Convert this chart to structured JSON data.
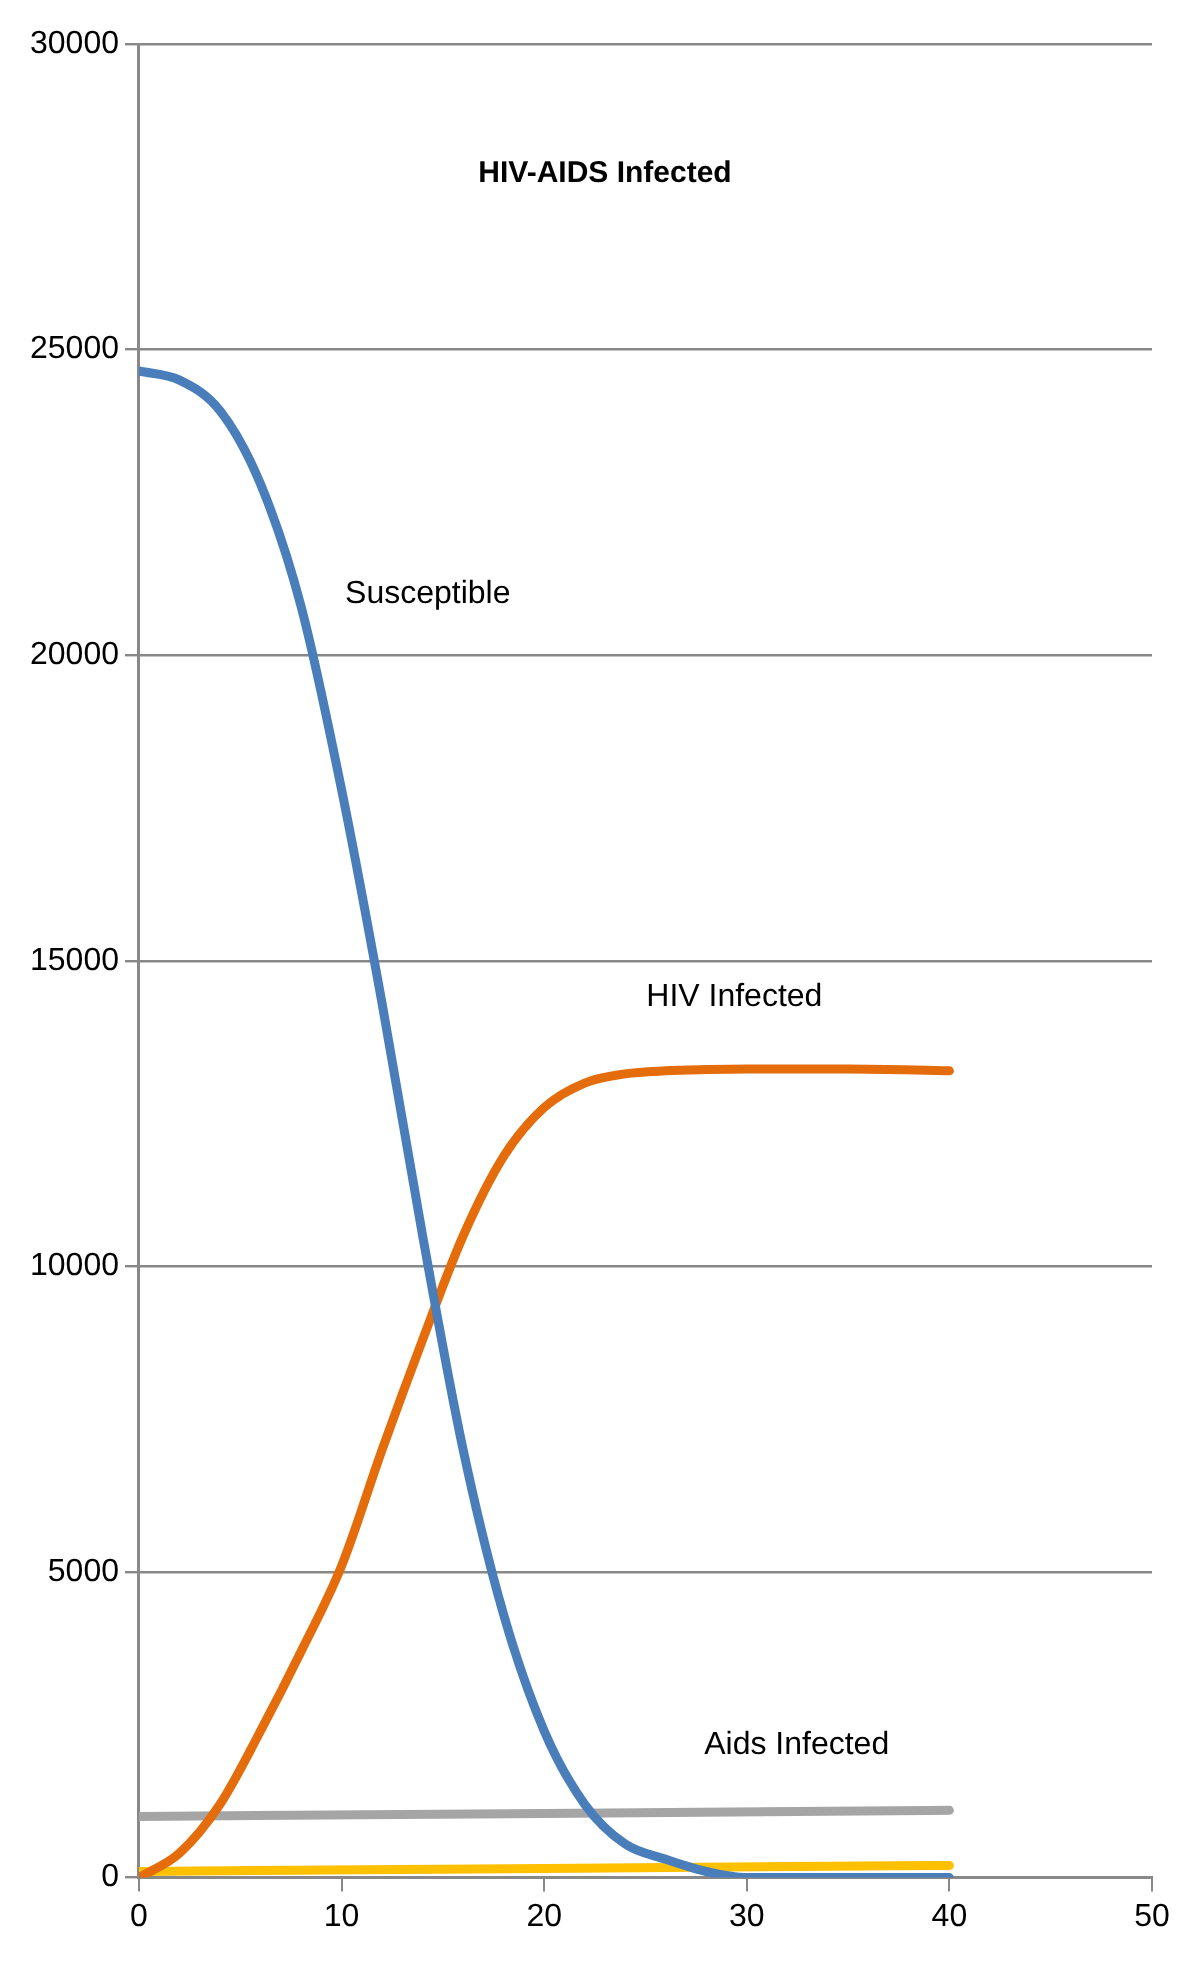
{
  "chart_data": {
    "type": "line",
    "title": "HIV-AIDS Infected",
    "x": [
      0,
      2,
      4,
      6,
      8,
      10,
      12,
      14,
      16,
      18,
      20,
      22,
      24,
      26,
      28,
      30,
      35,
      40
    ],
    "series": [
      {
        "name": "Susceptible",
        "color": "#4a7ebb",
        "values": [
          24650,
          24500,
          24000,
          22800,
          20800,
          17800,
          14300,
          10500,
          7000,
          4300,
          2400,
          1200,
          550,
          300,
          100,
          0,
          0,
          0
        ]
      },
      {
        "name": "HIV Infected",
        "color": "#e46c0a",
        "values": [
          0,
          400,
          1200,
          2400,
          3700,
          5100,
          7000,
          8800,
          10500,
          11800,
          12600,
          13000,
          13150,
          13200,
          13220,
          13230,
          13230,
          13200
        ]
      },
      {
        "name": "Aids Infected",
        "color": "#a5a5a5",
        "x": [
          0,
          20,
          40
        ],
        "values": [
          1000,
          1050,
          1100
        ]
      },
      {
        "color": "#ffc000",
        "x": [
          0,
          20,
          40
        ],
        "values": [
          100,
          150,
          200
        ]
      }
    ],
    "xlim": [
      0,
      50
    ],
    "xticks": [
      0,
      10,
      20,
      30,
      40,
      50
    ],
    "ylim": [
      0,
      30000
    ],
    "yticks": [
      0,
      5000,
      10000,
      15000,
      20000,
      25000,
      30000
    ],
    "grid": "y",
    "legend": false,
    "marker": "none",
    "line_style": "solid"
  }
}
